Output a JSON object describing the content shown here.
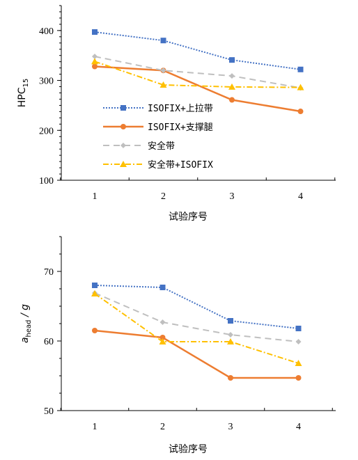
{
  "chart_data": [
    {
      "type": "line",
      "x": [
        1,
        2,
        3,
        4
      ],
      "xlabel": "试验序号",
      "ylabel_main": "HPC",
      "ylabel_sub": "15",
      "ylim": [
        100,
        450
      ],
      "yticks": [
        100,
        200,
        300,
        400
      ],
      "legend_position": "left",
      "series": [
        {
          "name": "ISOFIX+上拉带",
          "values": [
            397,
            380,
            341,
            322
          ],
          "color": "#4472c4",
          "marker": "square",
          "dash": "2,2"
        },
        {
          "name": "ISOFIX+支撑腿",
          "values": [
            328,
            320,
            261,
            238
          ],
          "color": "#ed7d31",
          "marker": "circle",
          "dash": ""
        },
        {
          "name": "安全带",
          "values": [
            348,
            320,
            309,
            285
          ],
          "color": "#bfbfbf",
          "marker": "diamond",
          "dash": "9,6"
        },
        {
          "name": "安全带+ISOFIX",
          "values": [
            338,
            291,
            287,
            286
          ],
          "color": "#ffc000",
          "marker": "triangle",
          "dash": "8,3,2,3"
        }
      ]
    },
    {
      "type": "line",
      "x": [
        1,
        2,
        3,
        4
      ],
      "xlabel": "试验序号",
      "ylabel_main": "a",
      "ylabel_sub": "head",
      "ylabel_suffix": " / g",
      "ylim": [
        50,
        75
      ],
      "yticks": [
        50,
        60,
        70
      ],
      "series": [
        {
          "name": "ISOFIX+上拉带",
          "values": [
            68.0,
            67.7,
            62.9,
            61.8
          ],
          "color": "#4472c4",
          "marker": "square",
          "dash": "2,2"
        },
        {
          "name": "ISOFIX+支撑腿",
          "values": [
            61.5,
            60.5,
            54.7,
            54.7
          ],
          "color": "#ed7d31",
          "marker": "circle",
          "dash": ""
        },
        {
          "name": "安全带",
          "values": [
            66.9,
            62.7,
            60.9,
            59.9
          ],
          "color": "#bfbfbf",
          "marker": "diamond",
          "dash": "9,6"
        },
        {
          "name": "安全带+ISOFIX",
          "values": [
            66.8,
            59.9,
            59.9,
            56.8
          ],
          "color": "#ffc000",
          "marker": "triangle",
          "dash": "8,3,2,3"
        }
      ]
    }
  ]
}
